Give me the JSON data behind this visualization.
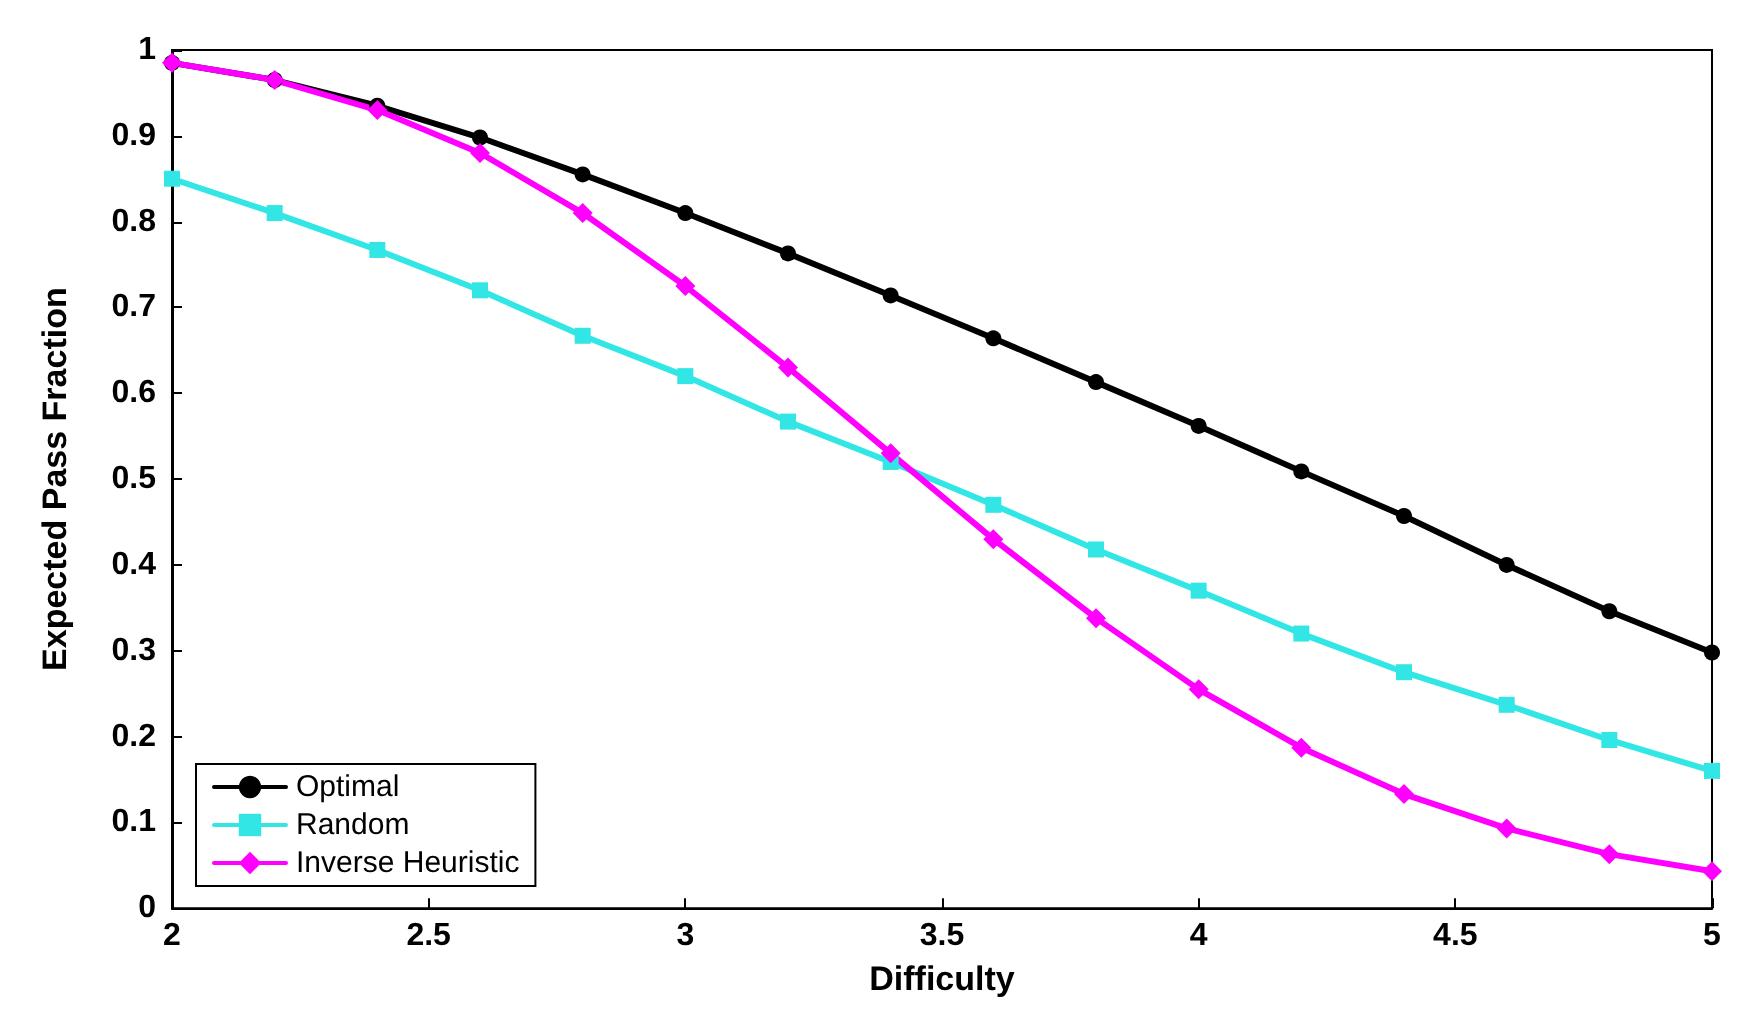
{
  "chart_data": {
    "type": "line",
    "xlabel": "Difficulty",
    "ylabel": "Expected Pass Fraction",
    "x": [
      2,
      2.2,
      2.4,
      2.6,
      2.8,
      3,
      3.2,
      3.4,
      3.6,
      3.8,
      4,
      4.2,
      4.4,
      4.6,
      4.8,
      5
    ],
    "series": [
      {
        "name": "Optimal",
        "color": "#000000",
        "marker": "circle",
        "values": [
          0.985,
          0.965,
          0.935,
          0.898,
          0.855,
          0.81,
          0.763,
          0.714,
          0.664,
          0.613,
          0.562,
          0.509,
          0.457,
          0.4,
          0.346,
          0.298
        ]
      },
      {
        "name": "Random",
        "color": "#33e6e6",
        "marker": "square",
        "values": [
          0.85,
          0.81,
          0.767,
          0.72,
          0.667,
          0.62,
          0.567,
          0.52,
          0.47,
          0.418,
          0.37,
          0.32,
          0.275,
          0.237,
          0.196,
          0.16
        ]
      },
      {
        "name": "Inverse Heuristic",
        "color": "#ff00ff",
        "marker": "diamond",
        "values": [
          0.985,
          0.965,
          0.93,
          0.88,
          0.81,
          0.725,
          0.63,
          0.53,
          0.43,
          0.338,
          0.255,
          0.187,
          0.133,
          0.093,
          0.063,
          0.043
        ]
      }
    ],
    "xlim": [
      2,
      5
    ],
    "xticks": [
      2,
      2.5,
      3,
      3.5,
      4,
      4.5,
      5
    ],
    "ylim": [
      0,
      1
    ],
    "yticks": [
      0,
      0.1,
      0.2,
      0.3,
      0.4,
      0.5,
      0.6,
      0.7,
      0.8,
      0.9,
      1
    ],
    "grid": false,
    "legend": "bottom left",
    "line_style": "solid"
  }
}
